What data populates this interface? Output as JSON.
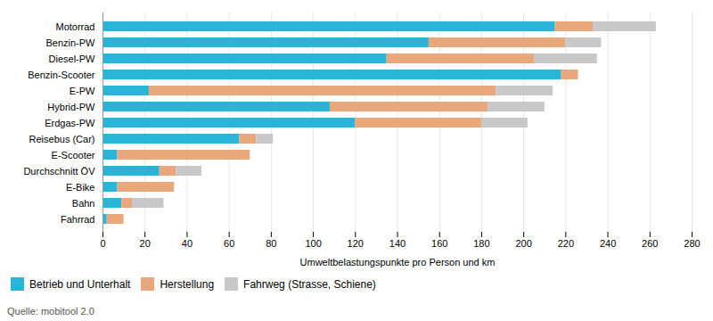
{
  "chart_data": {
    "type": "bar",
    "orientation": "horizontal",
    "stacked": true,
    "categories": [
      "Motorrad",
      "Benzin-PW",
      "Diesel-PW",
      "Benzin-Scooter",
      "E-PW",
      "Hybrid-PW",
      "Erdgas-PW",
      "Reisebus (Car)",
      "E-Scooter",
      "Durchschnitt ÖV",
      "E-Bike",
      "Bahn",
      "Fahrrad"
    ],
    "series": [
      {
        "name": "Betrieb und Unterhalt",
        "color": "#29b5d8",
        "values": [
          215,
          155,
          135,
          218,
          22,
          108,
          120,
          65,
          7,
          27,
          7,
          9,
          2
        ]
      },
      {
        "name": "Herstellung",
        "color": "#e8a87c",
        "values": [
          18,
          65,
          70,
          8,
          165,
          75,
          60,
          8,
          63,
          8,
          27,
          5,
          8
        ]
      },
      {
        "name": "Fahrweg (Strasse, Schiene)",
        "color": "#c8c8c8",
        "values": [
          30,
          17,
          30,
          0,
          27,
          27,
          22,
          8,
          0,
          12,
          0,
          15,
          0
        ]
      }
    ],
    "xlabel": "Umweltbelastungspunkte pro Person und km",
    "xlim": [
      0,
      280
    ],
    "xticks": [
      0,
      20,
      40,
      60,
      80,
      100,
      120,
      140,
      160,
      180,
      200,
      220,
      240,
      260,
      280
    ],
    "grid": true,
    "legend": "bottom",
    "source": "Quelle: mobitool 2.0"
  }
}
